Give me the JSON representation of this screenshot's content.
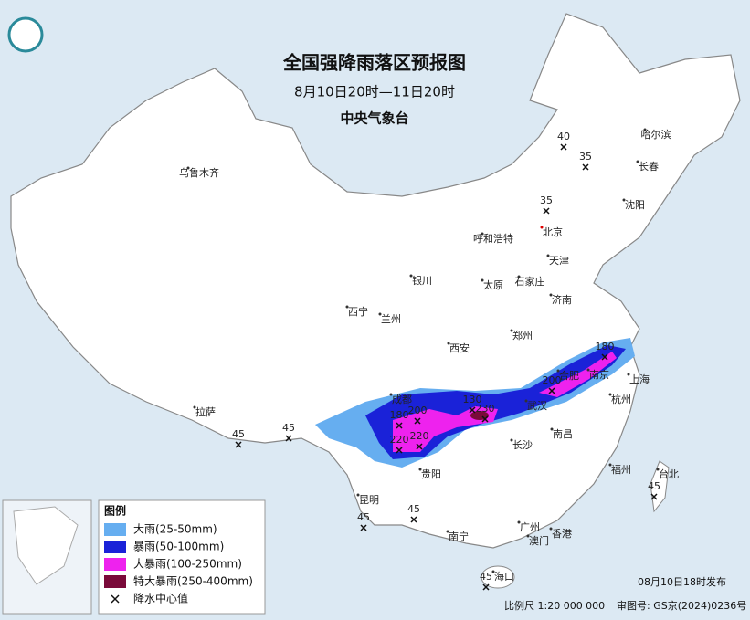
{
  "header": {
    "title": "全国强降雨落区预报图",
    "period": "8月10日20时—11日20时",
    "issuer": "中央气象台"
  },
  "cities": [
    "哈尔滨",
    "长春",
    "沈阳",
    "乌鲁木齐",
    "呼和浩特",
    "北京",
    "天津",
    "石家庄",
    "太原",
    "银川",
    "西宁",
    "兰州",
    "济南",
    "郑州",
    "西安",
    "成都",
    "合肥",
    "南京",
    "上海",
    "杭州",
    "武汉",
    "南昌",
    "长沙",
    "拉萨",
    "福州",
    "台北",
    "贵阳",
    "昆明",
    "南宁",
    "广州",
    "澳门",
    "香港",
    "海口"
  ],
  "centers": [
    40,
    35,
    35,
    45,
    45,
    45,
    45,
    45,
    45,
    180,
    200,
    130,
    230,
    180,
    200,
    220,
    220
  ],
  "legend": {
    "title": "图例",
    "items": [
      "大雨(25-50mm)",
      "暴雨(50-100mm)",
      "大暴雨(100-250mm)",
      "特大暴雨(250-400mm)",
      "降水中心值"
    ]
  },
  "footer": {
    "issued": "08月10日18时发布",
    "scale": "比例尺 1:20 000 000",
    "approval": "审图号: GS京(2024)0236号"
  }
}
